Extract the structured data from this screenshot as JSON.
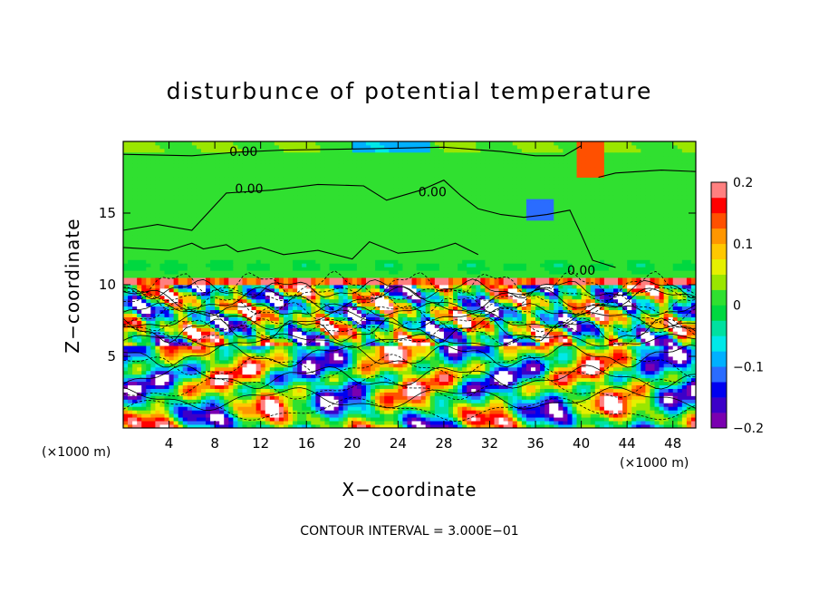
{
  "chart_data": {
    "type": "heatmap",
    "title": "disturbunce of potential temperature",
    "xlabel": "X−coordinate",
    "ylabel": "Z−coordinate",
    "x_unit_left": "(×1000 m)",
    "x_unit_right": "(×1000 m)",
    "footer": "CONTOUR INTERVAL = 3.000E−01",
    "xlim": [
      0,
      50
    ],
    "ylim": [
      0,
      20
    ],
    "x_ticks": [
      4,
      8,
      12,
      16,
      20,
      24,
      28,
      32,
      36,
      40,
      44,
      48
    ],
    "y_ticks": [
      5,
      10,
      15
    ],
    "colorbar": {
      "range": [
        -0.2,
        0.2
      ],
      "ticks": [
        0.2,
        0.1,
        0,
        -0.1,
        -0.2
      ],
      "tick_labels": [
        "0.2",
        "0.1",
        "0",
        "−0.1",
        "−0.2"
      ],
      "colors": [
        "#7a00b0",
        "#3c00c8",
        "#0000f0",
        "#2a6cff",
        "#00b0ff",
        "#00e8e8",
        "#00e0a0",
        "#00d840",
        "#30e030",
        "#9ae600",
        "#e6f000",
        "#ffc800",
        "#ff9600",
        "#ff5000",
        "#ff0000",
        "#ff8080"
      ]
    },
    "contour_labels": [
      {
        "text": "0.00",
        "x": 10.5,
        "z": 19.3
      },
      {
        "text": "0.00",
        "x": 11.0,
        "z": 16.7
      },
      {
        "text": "0.00",
        "x": 27.0,
        "z": 16.5
      },
      {
        "text": "0.00",
        "x": 40.0,
        "z": 11.0
      }
    ],
    "grid": false,
    "legend": "colorbar-right"
  }
}
